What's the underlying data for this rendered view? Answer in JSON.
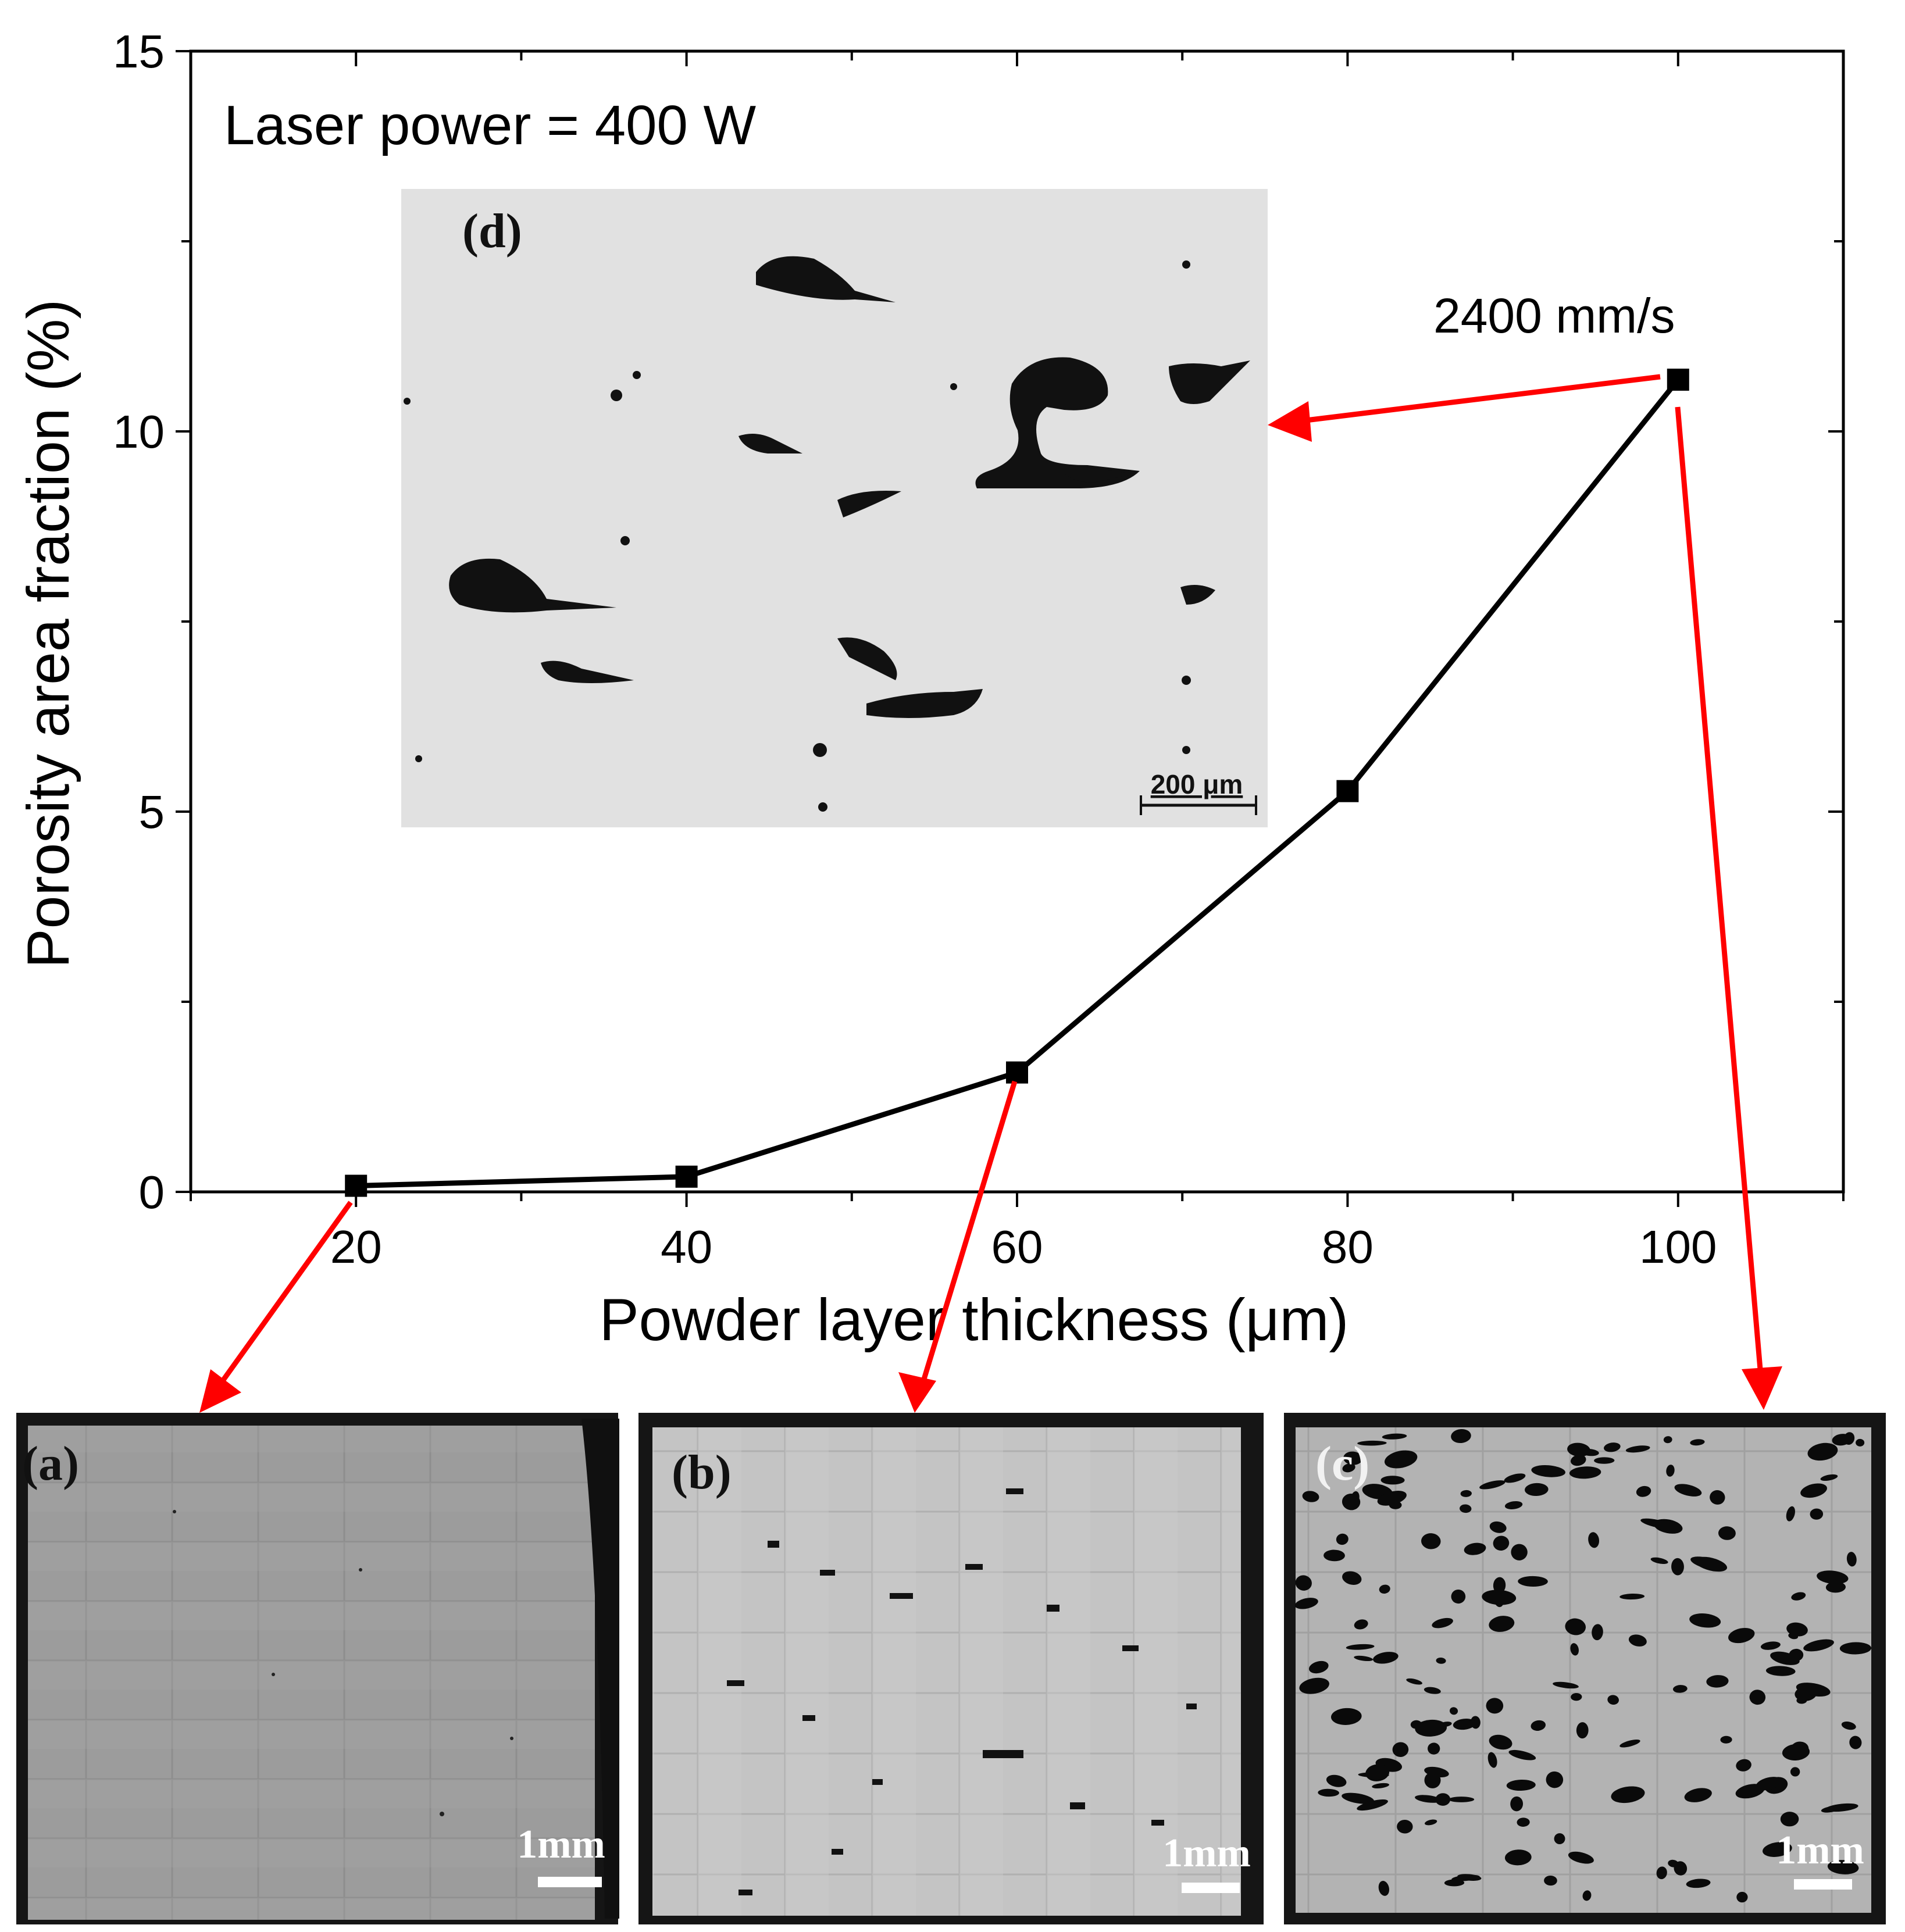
{
  "chart_data": {
    "type": "line",
    "annotation_top": "Laser power = 400 W",
    "annotation_speed": "2400 mm/s",
    "xlabel": "Powder layer thickness (μm)",
    "ylabel": "Porosity area fraction (%)",
    "xlim": [
      10,
      110
    ],
    "ylim": [
      0,
      15
    ],
    "x_ticks": [
      20,
      40,
      60,
      80,
      100
    ],
    "y_ticks": [
      0,
      5,
      10,
      15
    ],
    "grid": false,
    "series": [
      {
        "x": [
          20,
          40,
          60,
          80,
          100
        ],
        "y": [
          0.08,
          0.2,
          1.57,
          5.27,
          10.68
        ]
      }
    ],
    "line_color": "#000000",
    "arrow_color": "#ff0000"
  },
  "panels": {
    "d": {
      "label": "(d)",
      "scale_text": "200 μm"
    },
    "a": {
      "label": "(a)",
      "scale_text": "1mm"
    },
    "b": {
      "label": "(b)",
      "scale_text": "1mm"
    },
    "c": {
      "label": "(c)",
      "scale_text": "1mm"
    }
  }
}
